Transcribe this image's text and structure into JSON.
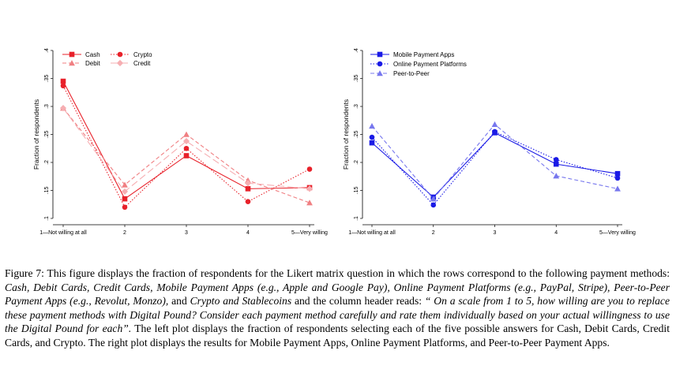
{
  "chart_data": [
    {
      "type": "line",
      "categories": [
        "1—Not willing at all",
        "2",
        "3",
        "4",
        "5—Very willing"
      ],
      "ylabel": "Fraction of respondents",
      "ylim": [
        0.1,
        0.4
      ],
      "yticks": [
        ".1",
        ".15",
        ".2",
        ".25",
        ".3",
        ".35",
        ".4"
      ],
      "grid": false,
      "legend": "top-left, two columns",
      "series": [
        {
          "name": "Cash",
          "values": [
            0.345,
            0.135,
            0.212,
            0.153,
            0.155
          ],
          "color": "#e8212a",
          "line": "solid",
          "marker": "square"
        },
        {
          "name": "Crypto",
          "values": [
            0.337,
            0.12,
            0.225,
            0.13,
            0.188
          ],
          "color": "#e8212a",
          "line": "dotted",
          "marker": "circle"
        },
        {
          "name": "Debit",
          "values": [
            0.297,
            0.16,
            0.25,
            0.168,
            0.128
          ],
          "color": "#f07f82",
          "line": "dashed",
          "marker": "triangle"
        },
        {
          "name": "Credit",
          "values": [
            0.297,
            0.148,
            0.238,
            0.163,
            0.153
          ],
          "color": "#f6aeb2",
          "line": "longdash",
          "marker": "diamond"
        }
      ]
    },
    {
      "type": "line",
      "categories": [
        "1—Not willing at all",
        "2",
        "3",
        "4",
        "5—Very willing"
      ],
      "ylabel": "Fraction of respondents",
      "ylim": [
        0.1,
        0.4
      ],
      "yticks": [
        ".1",
        ".15",
        ".2",
        ".25",
        ".3",
        ".35",
        ".4"
      ],
      "grid": false,
      "legend": "top-left, one column",
      "series": [
        {
          "name": "Mobile Payment Apps",
          "values": [
            0.235,
            0.138,
            0.253,
            0.197,
            0.18
          ],
          "color": "#1a1ae6",
          "line": "solid",
          "marker": "square"
        },
        {
          "name": "Online Payment Platforms",
          "values": [
            0.245,
            0.124,
            0.255,
            0.205,
            0.172
          ],
          "color": "#1a1ae6",
          "line": "dotted",
          "marker": "circle"
        },
        {
          "name": "Peer-to-Peer",
          "values": [
            0.265,
            0.135,
            0.268,
            0.176,
            0.153
          ],
          "color": "#7777ee",
          "line": "dashed",
          "marker": "triangle"
        }
      ]
    }
  ],
  "caption": {
    "lead": "Figure 7: This figure displays the fraction of respondents for the Likert matrix question in which the rows correspond to the following payment methods: ",
    "m1": "Cash, Debit Cards, Credit Cards, Mobile Payment Apps (e.g., Apple and Google Pay), Online Payment Platforms (e.g., PayPal, Stripe), Peer-to-Peer Payment Apps (e.g., Revolut, Monzo),",
    "and1": " and ",
    "m2": "Crypto and Stablecoins",
    "mid": " and the column header reads: ",
    "quote": "“ On a scale from 1 to 5, how willing are you to replace these payment methods with Digital Pound? Consider each payment method carefully and rate them individually based on your actual willingness to use the Digital Pound for each”.",
    "tail": " The left plot displays the fraction of respondents selecting each of the five possible answers for Cash, Debit Cards, Credit Cards, and Crypto. The right plot displays the results for Mobile Payment Apps, Online Payment Platforms, and Peer-to-Peer Payment Apps."
  }
}
